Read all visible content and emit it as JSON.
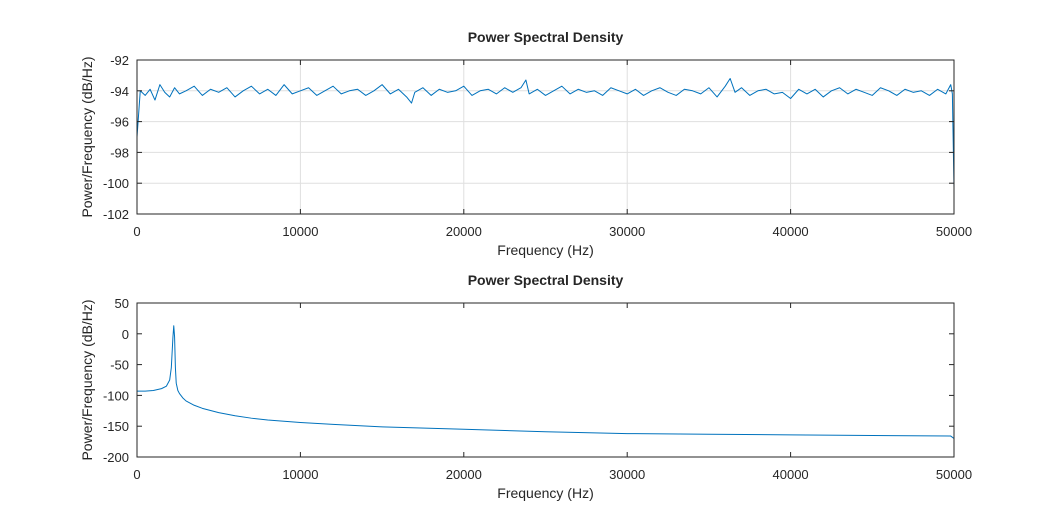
{
  "chart_data": [
    {
      "type": "line",
      "title": "Power Spectral Density",
      "xlabel": "Frequency (Hz)",
      "ylabel": "Power/Frequency (dB/Hz)",
      "xlim": [
        0,
        50000
      ],
      "ylim": [
        -102,
        -92
      ],
      "xticks": [
        0,
        10000,
        20000,
        30000,
        40000,
        50000
      ],
      "xtick_labels": [
        "0",
        "10000",
        "20000",
        "30000",
        "40000",
        "50000"
      ],
      "yticks": [
        -102,
        -100,
        -98,
        -96,
        -94,
        -92
      ],
      "ytick_labels": [
        "-102",
        "-100",
        "-98",
        "-96",
        "-94",
        "-92"
      ],
      "grid": true,
      "series": [
        {
          "color": "#0072bd",
          "x": [
            0,
            200,
            500,
            800,
            1100,
            1400,
            1700,
            2000,
            2300,
            2600,
            3000,
            3500,
            4000,
            4500,
            5000,
            5500,
            6000,
            6500,
            7000,
            7500,
            8000,
            8500,
            9000,
            9500,
            10000,
            10500,
            11000,
            11500,
            12000,
            12500,
            13000,
            13500,
            14000,
            14500,
            15000,
            15500,
            16000,
            16500,
            16800,
            17000,
            17500,
            18000,
            18500,
            19000,
            19500,
            20000,
            20500,
            21000,
            21500,
            22000,
            22500,
            23000,
            23500,
            23800,
            24000,
            24500,
            25000,
            25500,
            26000,
            26500,
            27000,
            27500,
            28000,
            28500,
            29000,
            29500,
            30000,
            30500,
            31000,
            31500,
            32000,
            32500,
            33000,
            33500,
            34000,
            34500,
            35000,
            35500,
            36000,
            36300,
            36600,
            37000,
            37500,
            38000,
            38500,
            39000,
            39500,
            40000,
            40500,
            41000,
            41500,
            42000,
            42500,
            43000,
            43500,
            44000,
            44500,
            45000,
            45500,
            46000,
            46500,
            47000,
            47500,
            48000,
            48500,
            49000,
            49500,
            49800,
            49900,
            50000
          ],
          "y": [
            -97.0,
            -94.0,
            -94.3,
            -93.9,
            -94.6,
            -93.6,
            -94.1,
            -94.4,
            -93.8,
            -94.2,
            -94.0,
            -93.7,
            -94.3,
            -93.9,
            -94.1,
            -93.8,
            -94.4,
            -94.0,
            -93.7,
            -94.2,
            -93.9,
            -94.3,
            -93.6,
            -94.2,
            -94.0,
            -93.8,
            -94.3,
            -94.0,
            -93.7,
            -94.2,
            -94.0,
            -93.9,
            -94.3,
            -94.0,
            -93.6,
            -94.2,
            -93.9,
            -94.4,
            -94.8,
            -94.1,
            -93.8,
            -94.3,
            -93.9,
            -94.1,
            -94.0,
            -93.7,
            -94.3,
            -94.0,
            -93.9,
            -94.2,
            -93.8,
            -94.1,
            -93.8,
            -93.3,
            -94.2,
            -93.9,
            -94.3,
            -94.0,
            -93.7,
            -94.2,
            -93.9,
            -94.1,
            -94.0,
            -94.3,
            -93.8,
            -94.0,
            -94.2,
            -93.9,
            -94.3,
            -94.0,
            -93.8,
            -94.1,
            -94.3,
            -93.9,
            -94.0,
            -94.2,
            -93.8,
            -94.4,
            -93.7,
            -93.2,
            -94.1,
            -93.8,
            -94.3,
            -94.0,
            -93.9,
            -94.2,
            -94.1,
            -94.5,
            -93.9,
            -94.2,
            -93.9,
            -94.4,
            -94.0,
            -93.8,
            -94.2,
            -93.9,
            -94.1,
            -94.3,
            -93.8,
            -94.0,
            -94.3,
            -93.9,
            -94.1,
            -94.0,
            -94.3,
            -93.9,
            -94.2,
            -93.6,
            -94.2,
            -100.3
          ]
        }
      ]
    },
    {
      "type": "line",
      "title": "Power Spectral Density",
      "xlabel": "Frequency (Hz)",
      "ylabel": "Power/Frequency (dB/Hz)",
      "xlim": [
        0,
        50000
      ],
      "ylim": [
        -200,
        50
      ],
      "xticks": [
        0,
        10000,
        20000,
        30000,
        40000,
        50000
      ],
      "xtick_labels": [
        "0",
        "10000",
        "20000",
        "30000",
        "40000",
        "50000"
      ],
      "yticks": [
        -200,
        -150,
        -100,
        -50,
        0,
        50
      ],
      "ytick_labels": [
        "-200",
        "-150",
        "-100",
        "-50",
        "0",
        "50"
      ],
      "grid": false,
      "series": [
        {
          "color": "#0072bd",
          "x": [
            0,
            500,
            1000,
            1500,
            1800,
            2000,
            2100,
            2200,
            2250,
            2300,
            2350,
            2400,
            2500,
            2600,
            2800,
            3000,
            3500,
            4000,
            5000,
            6000,
            7000,
            8000,
            10000,
            12000,
            15000,
            20000,
            25000,
            30000,
            35000,
            40000,
            45000,
            49800,
            50000
          ],
          "y": [
            -93,
            -93,
            -92,
            -89,
            -85,
            -75,
            -55,
            -5,
            13,
            -5,
            -55,
            -80,
            -92,
            -97,
            -104,
            -109,
            -116,
            -121,
            -128,
            -133,
            -137,
            -140,
            -144,
            -147,
            -151,
            -155,
            -159,
            -162,
            -163,
            -164,
            -165,
            -166,
            -170
          ]
        }
      ]
    }
  ]
}
